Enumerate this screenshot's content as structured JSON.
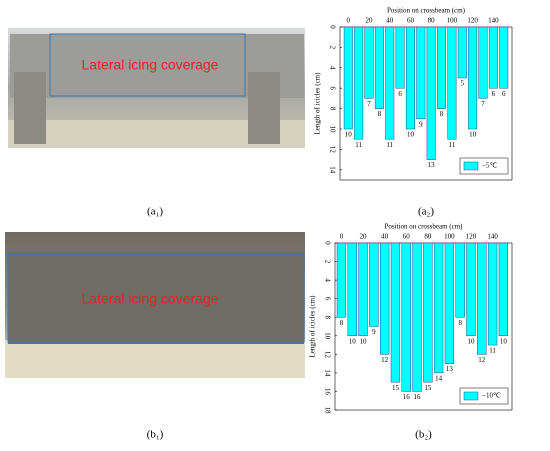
{
  "photos": [
    {
      "label": "Lateral icing coverage",
      "caption": "(a₁)"
    },
    {
      "label": "Lateral icing coverage",
      "caption": "(b₁)"
    }
  ],
  "chart_data": [
    {
      "type": "bar",
      "caption": "(a₂)",
      "x_label": "Position on crossbeam (cm)",
      "y_label": "Length of icicles (cm)",
      "x": [
        0,
        10,
        20,
        30,
        40,
        50,
        60,
        70,
        80,
        90,
        100,
        110,
        120,
        130,
        140,
        150
      ],
      "series": [
        {
          "name": "−5℃",
          "color": "#00ffff",
          "values": [
            10,
            11,
            7,
            8,
            11,
            6,
            10,
            9,
            13,
            8,
            11,
            5,
            10,
            7,
            6,
            6
          ]
        }
      ],
      "xlim": [
        -8,
        158
      ],
      "xticks": [
        0,
        20,
        40,
        60,
        80,
        100,
        120,
        140
      ],
      "ylim": [
        0,
        15
      ],
      "yticks": [
        0,
        2,
        4,
        6,
        8,
        10,
        12,
        14
      ],
      "y_inverted": true,
      "legend": "lower right"
    },
    {
      "type": "bar",
      "caption": "(b₂)",
      "x_label": "Position on crossbeam (cm)",
      "y_label": "Length of icicles (cm)",
      "x": [
        0,
        10,
        20,
        30,
        40,
        50,
        60,
        70,
        80,
        90,
        100,
        110,
        120,
        130,
        140,
        150
      ],
      "series": [
        {
          "name": "−10℃",
          "color": "#00ffff",
          "values": [
            8,
            10,
            10,
            9,
            12,
            15,
            16,
            16,
            15,
            14,
            13,
            8,
            10,
            12,
            11,
            10
          ]
        }
      ],
      "xlim": [
        -6,
        158
      ],
      "xticks": [
        0,
        20,
        40,
        60,
        80,
        100,
        120,
        140
      ],
      "ylim": [
        0,
        18
      ],
      "yticks": [
        0,
        2,
        4,
        6,
        8,
        10,
        12,
        14,
        16,
        18
      ],
      "y_inverted": true,
      "legend": "lower right"
    }
  ]
}
